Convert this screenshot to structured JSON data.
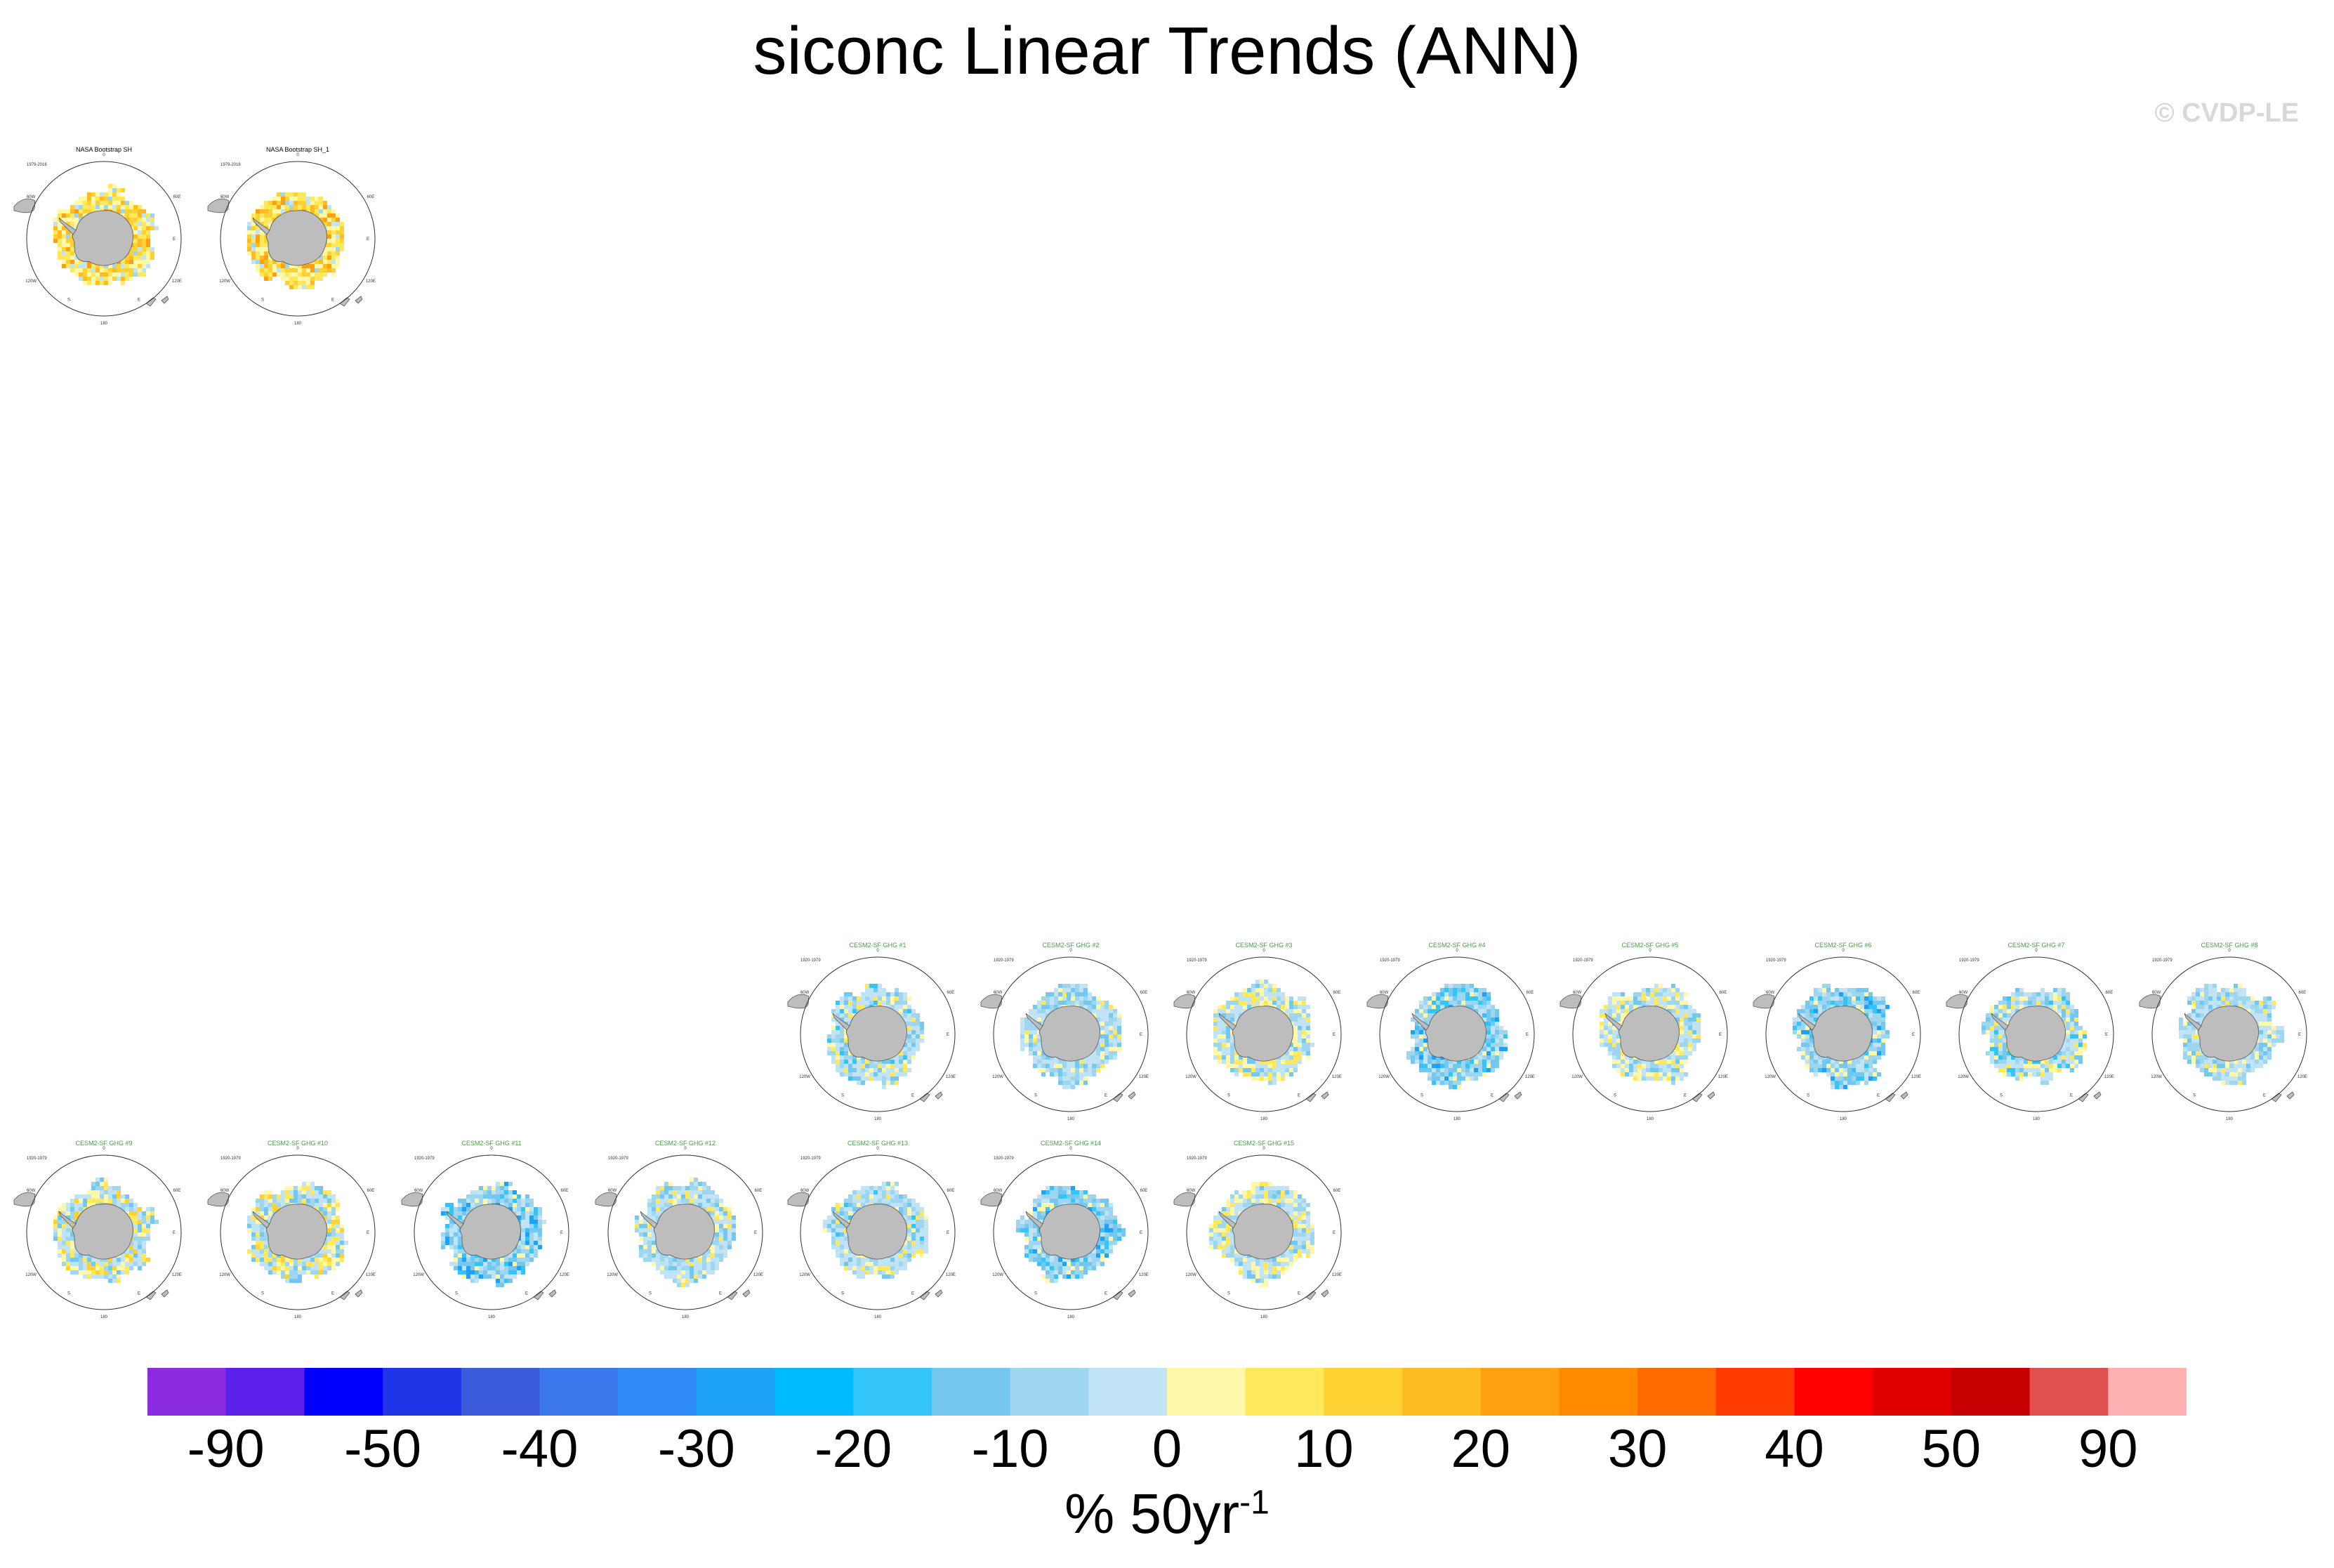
{
  "chart_data": {
    "type": "heatmap",
    "title": "siconc Linear Trends (ANN)",
    "watermark": "© CVDP-LE",
    "projection": "south polar stereographic",
    "map_tick_labels": [
      "0",
      "60E",
      "120E",
      "180",
      "120W",
      "60W",
      "E",
      "E",
      "S"
    ],
    "panels": [
      {
        "title": "NASA Bootstrap SH",
        "period": "1979-2016",
        "title_color": "#000000",
        "pattern": "obs"
      },
      {
        "title": "NASA Bootstrap SH_1",
        "period": "1979-2016",
        "title_color": "#000000",
        "pattern": "obs"
      },
      {
        "title": "CESM2-SF GHG #1",
        "period": "1920-1979",
        "title_color": "#4a9a4a",
        "pattern": "model-a"
      },
      {
        "title": "CESM2-SF GHG #2",
        "period": "1920-1979",
        "title_color": "#4a9a4a",
        "pattern": "model-b"
      },
      {
        "title": "CESM2-SF GHG #3",
        "period": "1920-1979",
        "title_color": "#4a9a4a",
        "pattern": "model-c"
      },
      {
        "title": "CESM2-SF GHG #4",
        "period": "1920-1979",
        "title_color": "#4a9a4a",
        "pattern": "model-d"
      },
      {
        "title": "CESM2-SF GHG #5",
        "period": "1920-1979",
        "title_color": "#4a9a4a",
        "pattern": "model-c"
      },
      {
        "title": "CESM2-SF GHG #6",
        "period": "1920-1979",
        "title_color": "#4a9a4a",
        "pattern": "model-d"
      },
      {
        "title": "CESM2-SF GHG #7",
        "period": "1920-1979",
        "title_color": "#4a9a4a",
        "pattern": "model-a"
      },
      {
        "title": "CESM2-SF GHG #8",
        "period": "1920-1979",
        "title_color": "#4a9a4a",
        "pattern": "model-b"
      },
      {
        "title": "CESM2-SF GHG #9",
        "period": "1920-1979",
        "title_color": "#4a9a4a",
        "pattern": "model-e"
      },
      {
        "title": "CESM2-SF GHG #10",
        "period": "1920-1979",
        "title_color": "#4a9a4a",
        "pattern": "model-e"
      },
      {
        "title": "CESM2-SF GHG #11",
        "period": "1920-1979",
        "title_color": "#4a9a4a",
        "pattern": "model-d"
      },
      {
        "title": "CESM2-SF GHG #12",
        "period": "1920-1979",
        "title_color": "#4a9a4a",
        "pattern": "model-b"
      },
      {
        "title": "CESM2-SF GHG #13",
        "period": "1920-1979",
        "title_color": "#4a9a4a",
        "pattern": "model-a"
      },
      {
        "title": "CESM2-SF GHG #14",
        "period": "1920-1979",
        "title_color": "#4a9a4a",
        "pattern": "model-d"
      },
      {
        "title": "CESM2-SF GHG #15",
        "period": "1920-1979",
        "title_color": "#4a9a4a",
        "pattern": "model-c"
      }
    ],
    "colorbar": {
      "colors": [
        "#8a2be2",
        "#5a1fe8",
        "#0000ff",
        "#2134e6",
        "#3b5bdb",
        "#3a78ec",
        "#2f8cf6",
        "#1ea2f9",
        "#00bbff",
        "#33c5f8",
        "#74c8f0",
        "#9fd6ef",
        "#c0e4f6",
        "#fff8a8",
        "#ffe85a",
        "#ffd233",
        "#ffbb22",
        "#ffa010",
        "#ff8a00",
        "#ff6a00",
        "#ff3b00",
        "#ff0000",
        "#e00000",
        "#c60000",
        "#e05050",
        "#ffb0b0"
      ],
      "tick_labels": [
        "-90",
        "-50",
        "-40",
        "-30",
        "-20",
        "-10",
        "0",
        "10",
        "20",
        "30",
        "40",
        "50",
        "90"
      ],
      "units": "% 50yr",
      "units_superscript": "-1"
    }
  }
}
